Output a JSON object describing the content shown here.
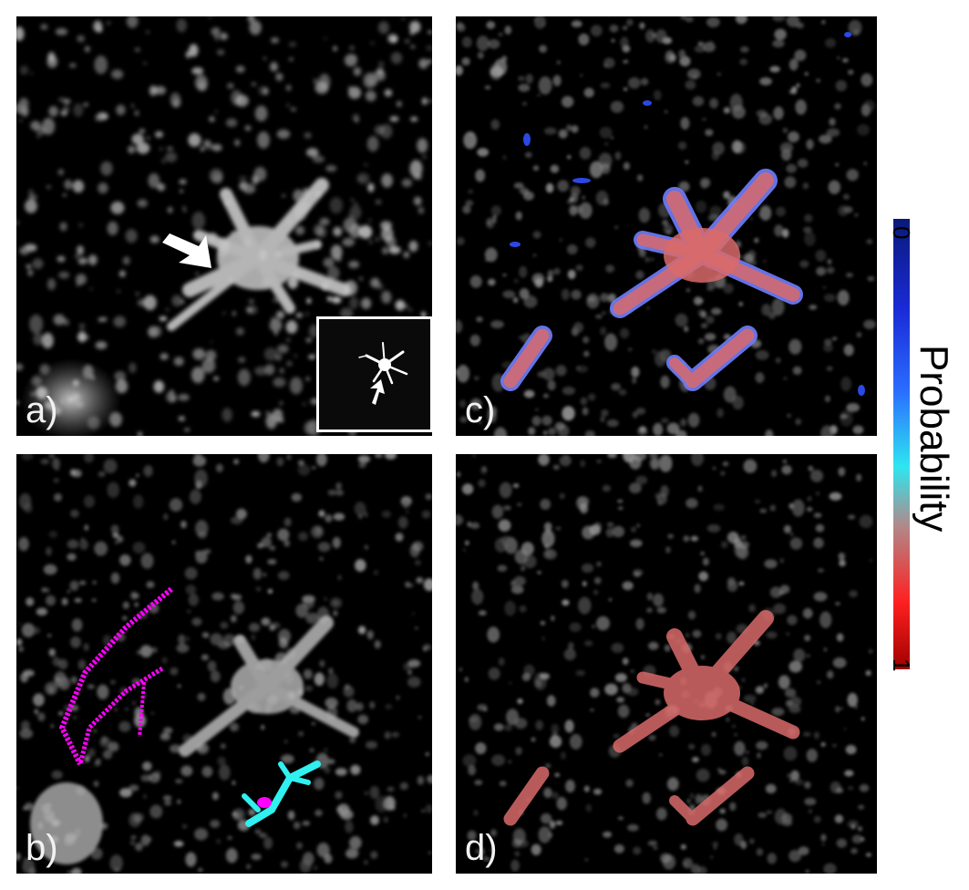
{
  "panels": [
    {
      "id": "a",
      "label": "a)"
    },
    {
      "id": "b",
      "label": "b)"
    },
    {
      "id": "c",
      "label": "c)"
    },
    {
      "id": "d",
      "label": "d)"
    }
  ],
  "colorbar": {
    "title": "Probability",
    "min_label": "0",
    "max_label": "1",
    "colors": [
      "#0a1a7a",
      "#1a2ad6",
      "#2a6cff",
      "#2ee6f0",
      "#b08a8a",
      "#ff2020",
      "#a00000"
    ]
  },
  "overlay_colors": {
    "probability_high": "#e06c6c",
    "probability_low": "#3050ff",
    "trace_magenta": "#ff00ff",
    "trace_cyan": "#30f0f0"
  }
}
